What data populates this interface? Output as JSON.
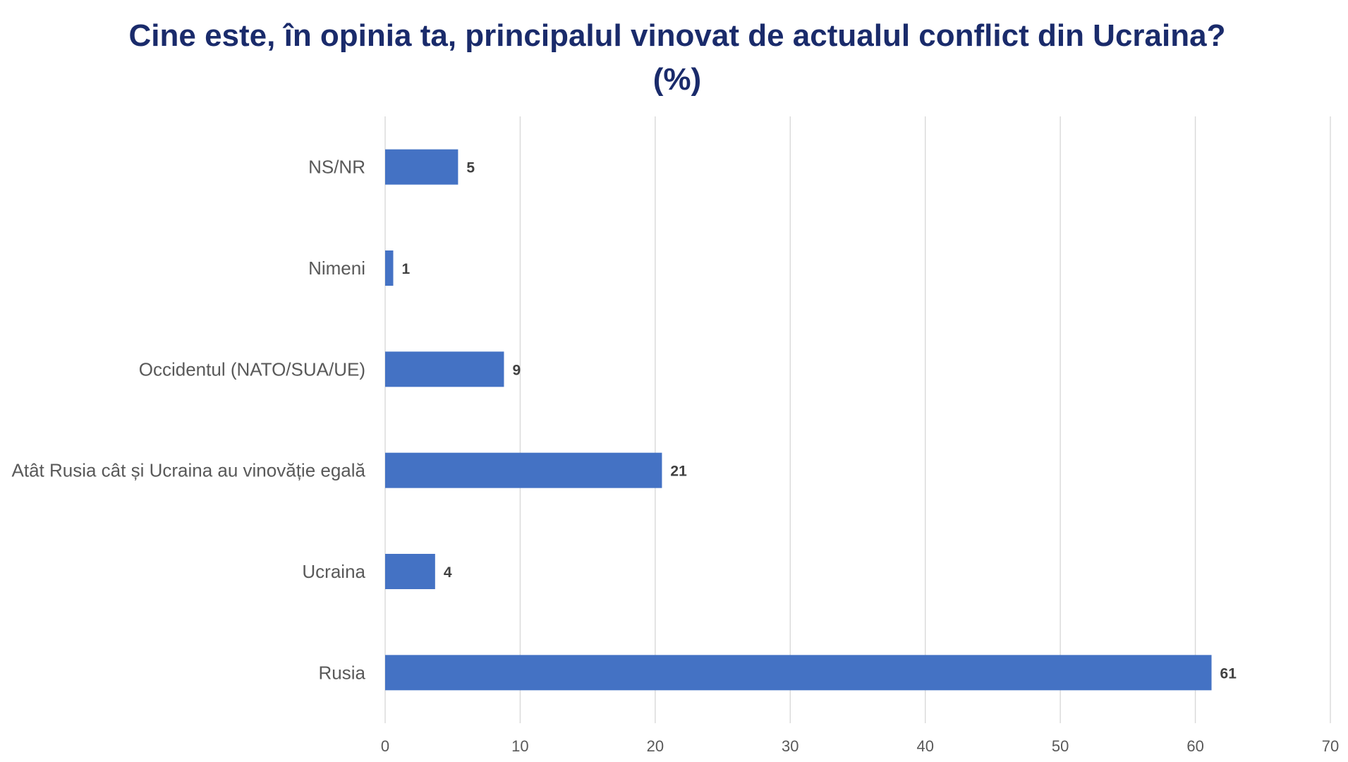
{
  "chart_data": {
    "type": "bar",
    "orientation": "horizontal",
    "title": "Cine este, în opinia ta, principalul vinovat de actualul conflict din Ucraina? (%)",
    "categories": [
      "NS/NR",
      "Nimeni",
      "Occidentul (NATO/SUA/UE)",
      "Atât Rusia cât și Ucraina au vinovăție egală",
      "Ucraina",
      "Rusia"
    ],
    "values": [
      5.4,
      0.6,
      8.8,
      20.5,
      3.7,
      61.2
    ],
    "data_labels": [
      "5",
      "1",
      "9",
      "21",
      "4",
      "61"
    ],
    "xlim": [
      0,
      70
    ],
    "xticks": [
      0,
      10,
      20,
      30,
      40,
      50,
      60,
      70
    ],
    "grid": "vertical",
    "bar_color": "#4472c4",
    "title_color": "#1a2b6b",
    "xlabel": "",
    "ylabel": ""
  }
}
